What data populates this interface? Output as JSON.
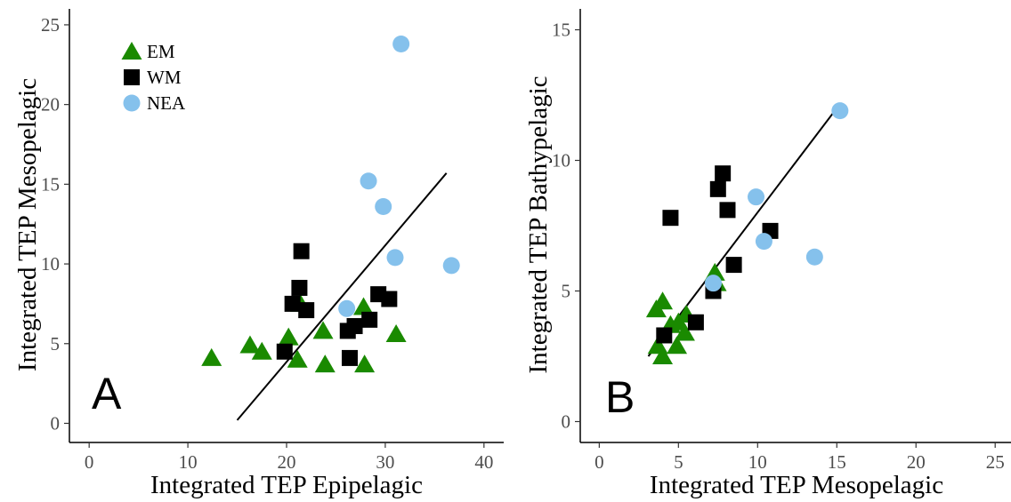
{
  "chart_data": [
    {
      "type": "scatter",
      "panel_label": "A",
      "xlabel": "Integrated TEP Epipelagic",
      "ylabel": "Integrated TEP Mesopelagic",
      "xlim": [
        -2,
        42
      ],
      "ylim": [
        -1.2,
        26
      ],
      "xticks": [
        0,
        10,
        20,
        30,
        40
      ],
      "yticks": [
        0,
        5,
        10,
        15,
        20,
        25
      ],
      "grid": false,
      "legend_position": "top-left",
      "series": [
        {
          "name": "EM",
          "marker": "triangle",
          "color": "#1a8a00",
          "points": [
            [
              12.4,
              4.1
            ],
            [
              16.3,
              4.9
            ],
            [
              17.5,
              4.5
            ],
            [
              20.2,
              5.4
            ],
            [
              21.1,
              4.0
            ],
            [
              21.4,
              7.5
            ],
            [
              23.7,
              5.8
            ],
            [
              23.9,
              3.7
            ],
            [
              27.8,
              7.3
            ],
            [
              27.9,
              3.7
            ],
            [
              31.1,
              5.6
            ]
          ]
        },
        {
          "name": "WM",
          "marker": "square",
          "color": "#000000",
          "points": [
            [
              19.8,
              4.5
            ],
            [
              20.6,
              7.5
            ],
            [
              21.3,
              8.5
            ],
            [
              21.5,
              10.8
            ],
            [
              22.0,
              7.1
            ],
            [
              26.2,
              5.8
            ],
            [
              26.4,
              4.1
            ],
            [
              26.9,
              6.1
            ],
            [
              28.4,
              6.5
            ],
            [
              29.3,
              8.1
            ],
            [
              30.4,
              7.8
            ]
          ]
        },
        {
          "name": "NEA",
          "marker": "circle",
          "color": "#85c1ec",
          "points": [
            [
              26.1,
              7.2
            ],
            [
              28.3,
              15.2
            ],
            [
              29.8,
              13.6
            ],
            [
              31.0,
              10.4
            ],
            [
              31.6,
              23.8
            ],
            [
              36.7,
              9.9
            ]
          ]
        }
      ],
      "fit_line": [
        [
          15.0,
          0.2
        ],
        [
          36.2,
          15.7
        ]
      ]
    },
    {
      "type": "scatter",
      "panel_label": "B",
      "xlabel": "Integrated TEP Mesopelagic",
      "ylabel": "Integrated TEP Bathypelagic",
      "xlim": [
        -1.2,
        26
      ],
      "ylim": [
        -0.8,
        15.8
      ],
      "xticks": [
        0,
        5,
        10,
        15,
        20,
        25
      ],
      "yticks": [
        0,
        5,
        10,
        15
      ],
      "grid": false,
      "series": [
        {
          "name": "EM",
          "marker": "triangle",
          "color": "#1a8a00",
          "points": [
            [
              3.6,
              4.3
            ],
            [
              3.7,
              2.9
            ],
            [
              4.0,
              4.6
            ],
            [
              4.0,
              2.5
            ],
            [
              4.5,
              3.7
            ],
            [
              4.9,
              2.9
            ],
            [
              5.0,
              3.8
            ],
            [
              5.4,
              3.4
            ],
            [
              5.5,
              4.1
            ],
            [
              7.3,
              5.7
            ],
            [
              7.4,
              5.3
            ]
          ]
        },
        {
          "name": "WM",
          "marker": "square",
          "color": "#000000",
          "points": [
            [
              4.1,
              3.3
            ],
            [
              4.5,
              7.8
            ],
            [
              6.1,
              3.8
            ],
            [
              7.2,
              5.0
            ],
            [
              7.5,
              8.9
            ],
            [
              7.8,
              9.5
            ],
            [
              8.1,
              8.1
            ],
            [
              8.5,
              6.0
            ],
            [
              10.8,
              7.3
            ]
          ]
        },
        {
          "name": "NEA",
          "marker": "circle",
          "color": "#85c1ec",
          "points": [
            [
              7.2,
              5.3
            ],
            [
              9.9,
              8.6
            ],
            [
              10.4,
              6.9
            ],
            [
              13.6,
              6.3
            ],
            [
              15.2,
              11.9
            ]
          ]
        }
      ],
      "fit_line": [
        [
          3.1,
          2.5
        ],
        [
          15.0,
          12.0
        ]
      ]
    }
  ]
}
